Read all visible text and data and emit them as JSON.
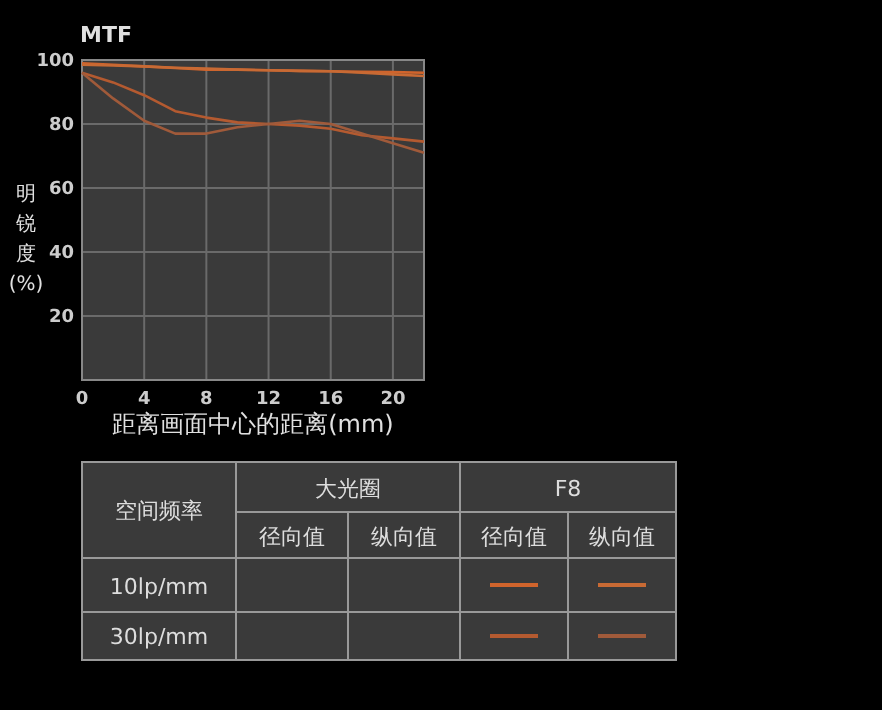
{
  "chart_data": {
    "type": "line",
    "title": "MTF",
    "xlabel": "距离画面中心的距离(mm)",
    "ylabel": "明锐度(%)",
    "xlim": [
      0,
      22
    ],
    "xticks": [
      0,
      4,
      8,
      12,
      16,
      20
    ],
    "ylim": [
      0,
      100
    ],
    "yticks": [
      20,
      40,
      60,
      80,
      100
    ],
    "grid": true,
    "x": [
      0,
      2,
      4,
      6,
      8,
      10,
      12,
      14,
      16,
      18,
      20,
      22
    ],
    "series": [
      {
        "color": "#d0642c",
        "values": [
          99,
          98.5,
          98,
          97.5,
          97,
          97,
          96.8,
          96.6,
          96.5,
          96.3,
          96.2,
          96
        ]
      },
      {
        "color": "#c86a34",
        "values": [
          98.5,
          98.3,
          98,
          97.6,
          97.3,
          97,
          96.8,
          96.6,
          96.5,
          96,
          95.5,
          95
        ]
      },
      {
        "color": "#b45a30",
        "values": [
          96,
          93,
          89,
          84,
          82,
          80.5,
          80,
          79.5,
          78.5,
          76.5,
          75.5,
          74.5
        ]
      },
      {
        "color": "#a05a3a",
        "values": [
          96,
          88,
          81,
          77,
          77,
          79,
          80,
          81,
          80,
          77,
          74,
          71
        ]
      }
    ],
    "annotations": [
      "空间频率",
      "大光圈",
      "F8",
      "径向值",
      "纵向值",
      "径向值",
      "纵向值",
      "10lp/mm",
      "30lp/mm"
    ]
  }
}
